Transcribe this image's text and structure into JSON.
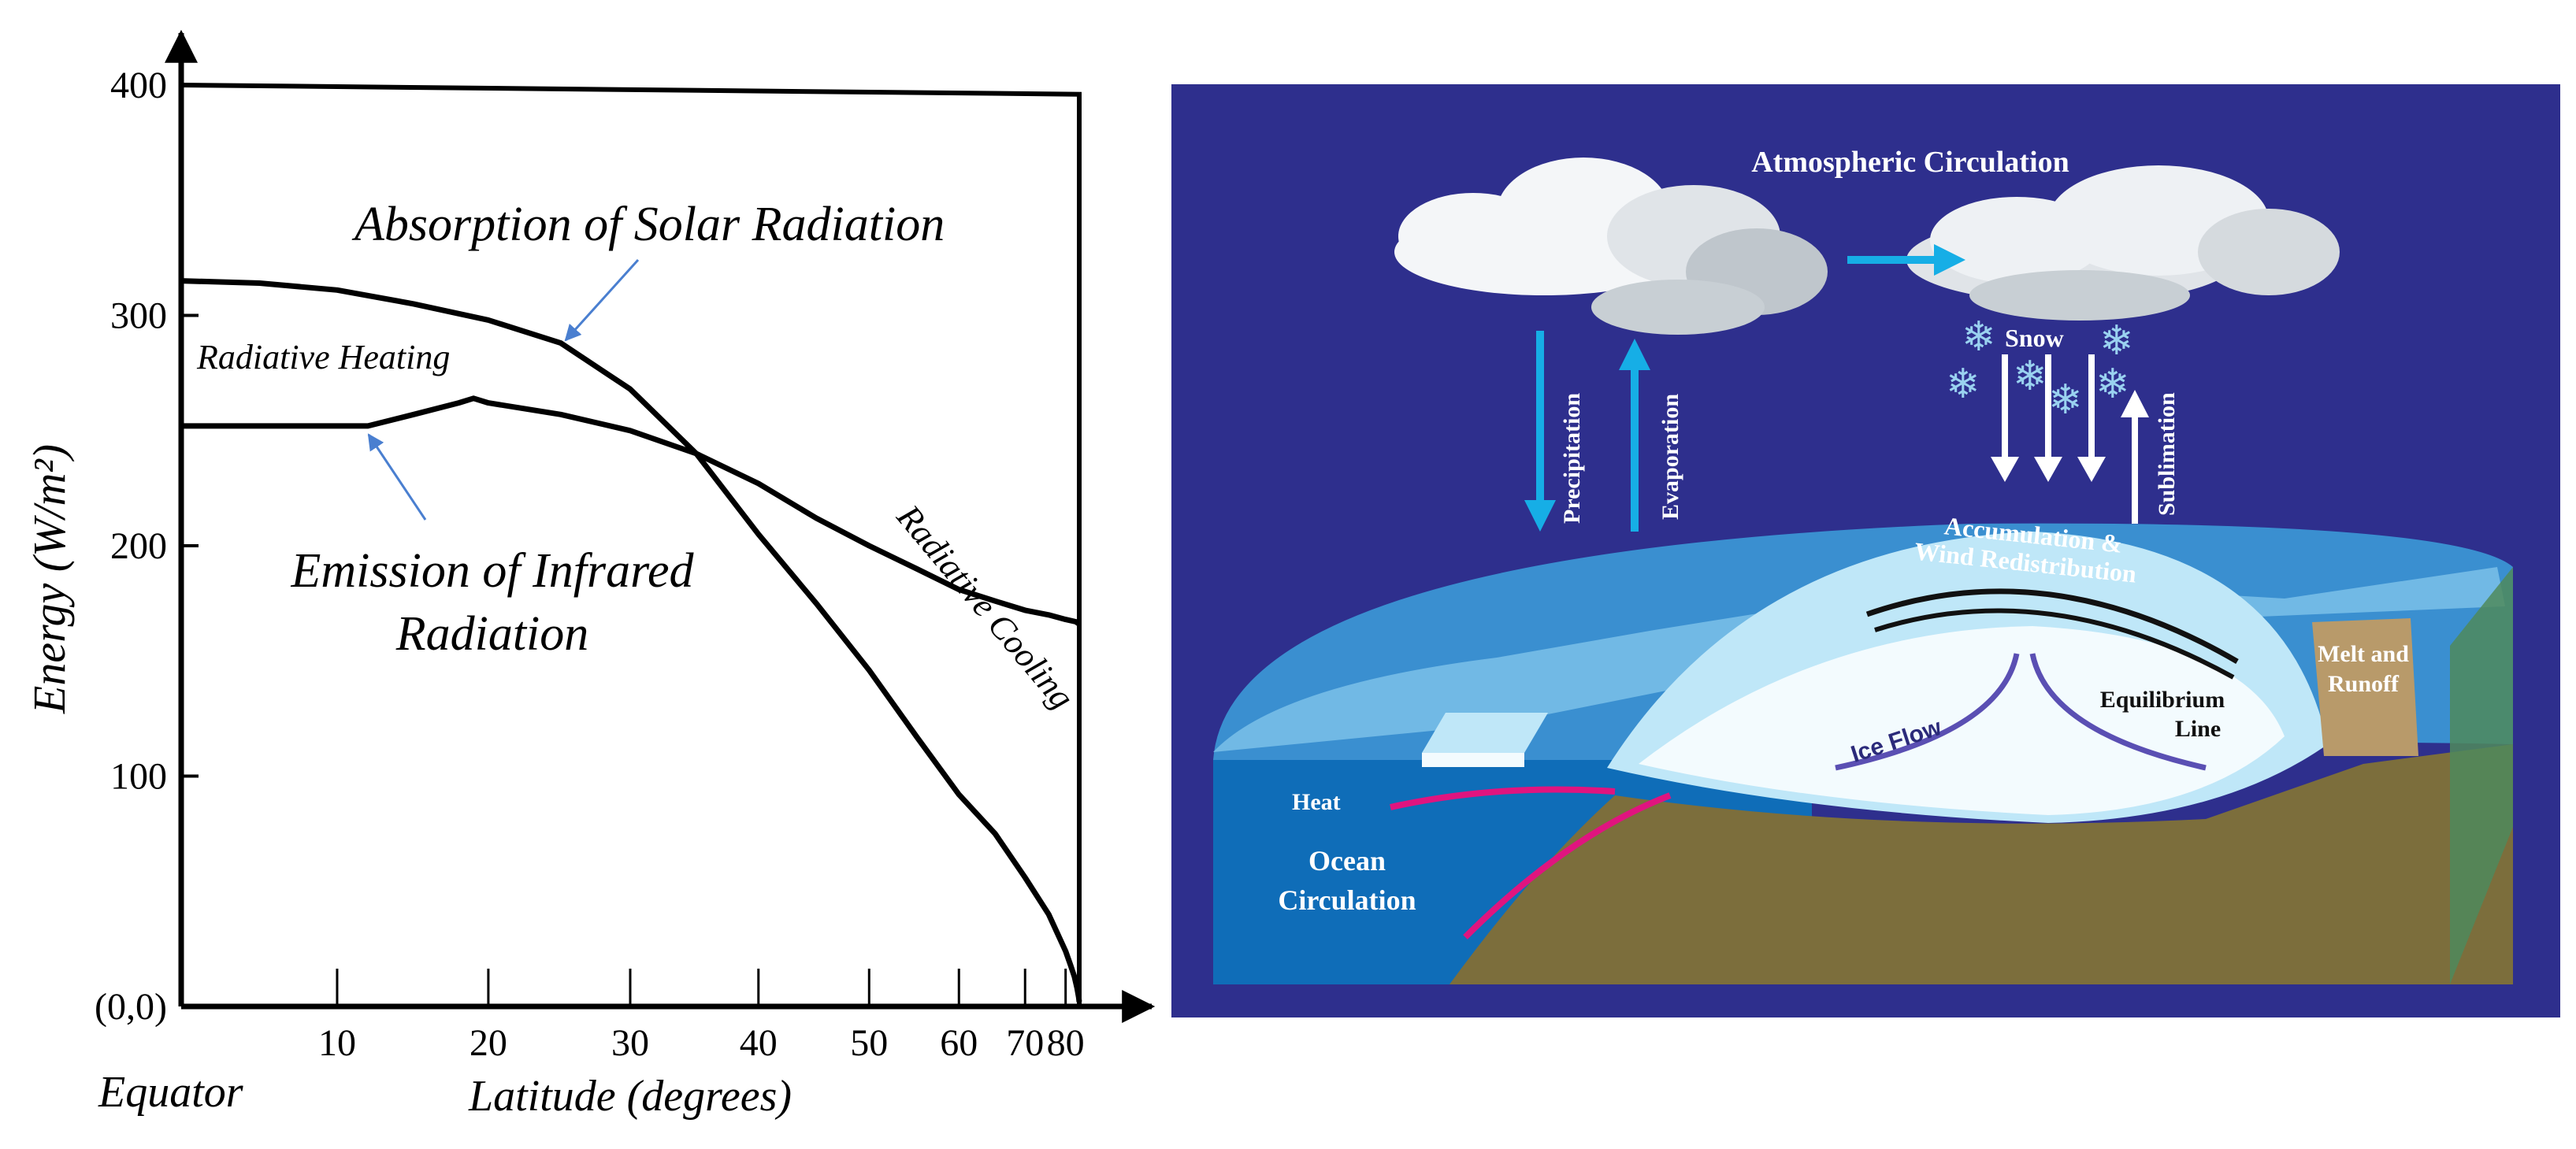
{
  "chart_data": {
    "type": "line",
    "y_axis_label": "Energy (W/m²)",
    "y_ticks": [
      {
        "value": 0,
        "label": "(0,0)"
      },
      {
        "value": 100,
        "label": "100"
      },
      {
        "value": 200,
        "label": "200"
      },
      {
        "value": 300,
        "label": "300"
      },
      {
        "value": 400,
        "label": "400"
      }
    ],
    "x_axis_label": "Latitude (degrees)",
    "x_origin_label": "Equator",
    "x_scale": "sine of latitude",
    "x_ticks": [
      {
        "value": 10,
        "label": "10"
      },
      {
        "value": 20,
        "label": "20"
      },
      {
        "value": 30,
        "label": "30"
      },
      {
        "value": 40,
        "label": "40"
      },
      {
        "value": 50,
        "label": "50"
      },
      {
        "value": 60,
        "label": "60"
      },
      {
        "value": 70,
        "label": "70"
      },
      {
        "value": 80,
        "label": "80"
      }
    ],
    "ylim": [
      0,
      400
    ],
    "xlim": [
      0,
      90
    ],
    "series": [
      {
        "name": "Absorption of Solar Radiation",
        "color": "#000000",
        "points": [
          [
            0,
            315
          ],
          [
            5,
            314
          ],
          [
            10,
            311
          ],
          [
            15,
            305
          ],
          [
            20,
            298
          ],
          [
            25,
            288
          ],
          [
            30,
            268
          ],
          [
            35,
            240
          ],
          [
            40,
            205
          ],
          [
            45,
            175
          ],
          [
            50,
            146
          ],
          [
            55,
            117
          ],
          [
            60,
            92
          ],
          [
            65,
            75
          ],
          [
            70,
            56
          ],
          [
            75,
            40
          ],
          [
            80,
            24
          ],
          [
            82,
            18
          ],
          [
            84,
            13
          ],
          [
            86,
            8
          ],
          [
            88,
            4
          ],
          [
            90,
            2
          ]
        ]
      },
      {
        "name": "Emission of Infrared Radiation",
        "color": "#000000",
        "points": [
          [
            0,
            252
          ],
          [
            5,
            252
          ],
          [
            10,
            252
          ],
          [
            12,
            252
          ],
          [
            15,
            257
          ],
          [
            18,
            262
          ],
          [
            19,
            264
          ],
          [
            20,
            262
          ],
          [
            25,
            257
          ],
          [
            30,
            250
          ],
          [
            35,
            240
          ],
          [
            40,
            227
          ],
          [
            45,
            212
          ],
          [
            50,
            200
          ],
          [
            55,
            190
          ],
          [
            60,
            181
          ],
          [
            65,
            176
          ],
          [
            70,
            172
          ],
          [
            75,
            170
          ],
          [
            80,
            168
          ],
          [
            85,
            167
          ],
          [
            90,
            166
          ]
        ]
      }
    ],
    "annotations": {
      "radiative_heating": "Radiative Heating",
      "radiative_cooling": "Radiative Cooling"
    },
    "top_boundary": {
      "start": 400,
      "end": 396
    }
  },
  "diagram": {
    "colors": {
      "background": "#2e2f8d",
      "ocean": "#0f6db8",
      "ice": "#e9f6fc",
      "land": "#7c6e3c",
      "arrow_blue": "#16aee6",
      "heat": "#e0147f"
    },
    "labels": {
      "atmospheric": "Atmospheric Circulation",
      "precipitation": "Precipitation",
      "evaporation": "Evaporation",
      "snow": "Snow",
      "sublimation": "Sublimation",
      "accumulation1": "Accumulation &",
      "accumulation2": "Wind Redistribution",
      "melt1": "Melt and",
      "melt2": "Runoff",
      "equilibrium1": "Equilibrium",
      "equilibrium2": "Line",
      "iceflow": "Ice Flow",
      "heat": "Heat",
      "ocean1": "Ocean",
      "ocean2": "Circulation"
    }
  }
}
